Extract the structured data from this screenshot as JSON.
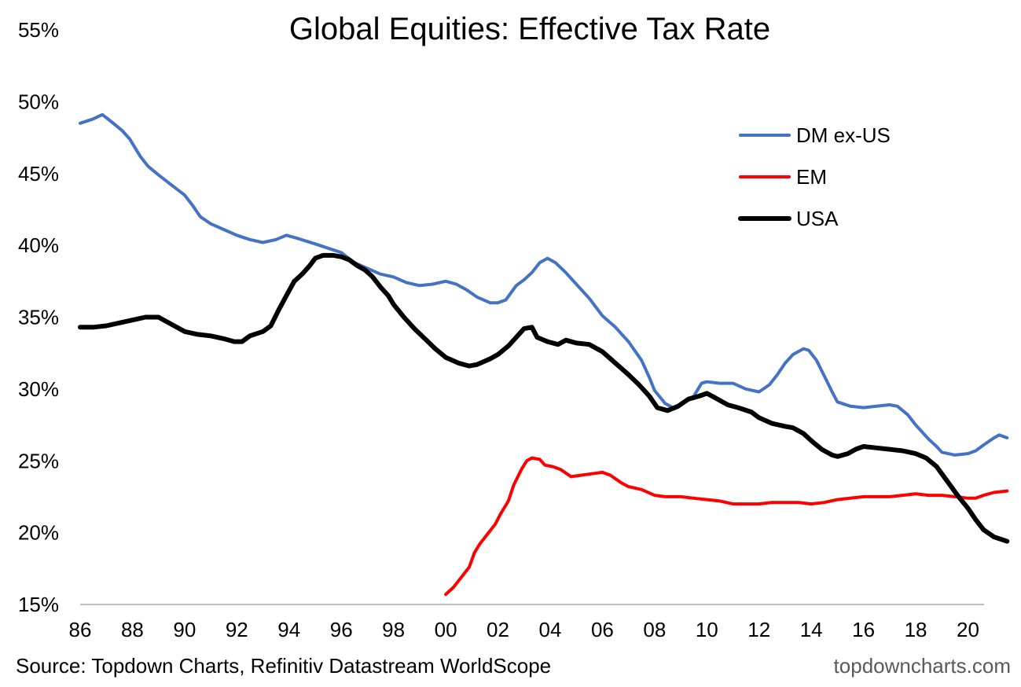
{
  "chart_data": {
    "type": "line",
    "title": "Global Equities: Effective Tax Rate",
    "xlabel": "",
    "ylabel": "",
    "x_ticks": [
      "86",
      "88",
      "90",
      "92",
      "94",
      "96",
      "98",
      "00",
      "02",
      "04",
      "06",
      "08",
      "10",
      "12",
      "14",
      "16",
      "18",
      "20"
    ],
    "y_ticks": [
      "15%",
      "20%",
      "25%",
      "30%",
      "35%",
      "40%",
      "45%",
      "50%",
      "55%"
    ],
    "xlim": [
      1986,
      2021.5
    ],
    "ylim": [
      15,
      55
    ],
    "grid": false,
    "legend_position": "top-right",
    "series": [
      {
        "name": "DM ex-US",
        "color": "#4472C4",
        "width": 4,
        "points": [
          [
            1986.0,
            48.5
          ],
          [
            1986.5,
            48.8
          ],
          [
            1986.85,
            49.1
          ],
          [
            1987.2,
            48.6
          ],
          [
            1987.6,
            48.0
          ],
          [
            1987.9,
            47.4
          ],
          [
            1988.3,
            46.2
          ],
          [
            1988.6,
            45.5
          ],
          [
            1989.0,
            44.9
          ],
          [
            1989.5,
            44.2
          ],
          [
            1990.0,
            43.5
          ],
          [
            1990.3,
            42.8
          ],
          [
            1990.6,
            42.0
          ],
          [
            1991.0,
            41.5
          ],
          [
            1991.5,
            41.1
          ],
          [
            1992.0,
            40.7
          ],
          [
            1992.5,
            40.4
          ],
          [
            1993.0,
            40.2
          ],
          [
            1993.5,
            40.4
          ],
          [
            1993.9,
            40.7
          ],
          [
            1994.3,
            40.5
          ],
          [
            1995.0,
            40.1
          ],
          [
            1995.5,
            39.8
          ],
          [
            1996.0,
            39.5
          ],
          [
            1996.5,
            38.8
          ],
          [
            1997.0,
            38.4
          ],
          [
            1997.5,
            38.0
          ],
          [
            1998.0,
            37.8
          ],
          [
            1998.5,
            37.4
          ],
          [
            1999.0,
            37.2
          ],
          [
            1999.5,
            37.3
          ],
          [
            2000.0,
            37.5
          ],
          [
            2000.4,
            37.3
          ],
          [
            2000.8,
            36.9
          ],
          [
            2001.2,
            36.4
          ],
          [
            2001.7,
            36.0
          ],
          [
            2002.0,
            36.0
          ],
          [
            2002.3,
            36.2
          ],
          [
            2002.7,
            37.2
          ],
          [
            2003.0,
            37.6
          ],
          [
            2003.3,
            38.1
          ],
          [
            2003.6,
            38.8
          ],
          [
            2003.9,
            39.1
          ],
          [
            2004.2,
            38.8
          ],
          [
            2004.6,
            38.1
          ],
          [
            2005.0,
            37.3
          ],
          [
            2005.5,
            36.3
          ],
          [
            2006.0,
            35.1
          ],
          [
            2006.5,
            34.3
          ],
          [
            2007.0,
            33.3
          ],
          [
            2007.5,
            32.0
          ],
          [
            2007.8,
            30.8
          ],
          [
            2008.0,
            29.9
          ],
          [
            2008.4,
            29.0
          ],
          [
            2008.7,
            28.7
          ],
          [
            2009.0,
            28.9
          ],
          [
            2009.5,
            29.5
          ],
          [
            2009.8,
            30.4
          ],
          [
            2010.0,
            30.5
          ],
          [
            2010.5,
            30.4
          ],
          [
            2011.0,
            30.4
          ],
          [
            2011.5,
            30.0
          ],
          [
            2012.0,
            29.8
          ],
          [
            2012.4,
            30.3
          ],
          [
            2012.7,
            31.0
          ],
          [
            2013.0,
            31.8
          ],
          [
            2013.3,
            32.4
          ],
          [
            2013.7,
            32.8
          ],
          [
            2013.9,
            32.7
          ],
          [
            2014.2,
            32.0
          ],
          [
            2014.5,
            30.9
          ],
          [
            2014.8,
            29.8
          ],
          [
            2015.0,
            29.1
          ],
          [
            2015.5,
            28.8
          ],
          [
            2016.0,
            28.7
          ],
          [
            2016.5,
            28.8
          ],
          [
            2017.0,
            28.9
          ],
          [
            2017.3,
            28.8
          ],
          [
            2017.7,
            28.2
          ],
          [
            2018.0,
            27.5
          ],
          [
            2018.5,
            26.5
          ],
          [
            2018.8,
            26.0
          ],
          [
            2019.0,
            25.6
          ],
          [
            2019.5,
            25.4
          ],
          [
            2020.0,
            25.5
          ],
          [
            2020.3,
            25.7
          ],
          [
            2020.6,
            26.1
          ],
          [
            2021.0,
            26.6
          ],
          [
            2021.2,
            26.8
          ],
          [
            2021.5,
            26.6
          ]
        ]
      },
      {
        "name": "EM",
        "color": "#FF0000",
        "width": 4,
        "points": [
          [
            2000.0,
            15.7
          ],
          [
            2000.3,
            16.2
          ],
          [
            2000.6,
            16.9
          ],
          [
            2000.9,
            17.6
          ],
          [
            2001.1,
            18.6
          ],
          [
            2001.3,
            19.2
          ],
          [
            2001.6,
            19.9
          ],
          [
            2001.9,
            20.6
          ],
          [
            2002.1,
            21.3
          ],
          [
            2002.4,
            22.2
          ],
          [
            2002.6,
            23.3
          ],
          [
            2002.9,
            24.4
          ],
          [
            2003.1,
            25.0
          ],
          [
            2003.3,
            25.2
          ],
          [
            2003.6,
            25.1
          ],
          [
            2003.8,
            24.7
          ],
          [
            2004.1,
            24.6
          ],
          [
            2004.4,
            24.4
          ],
          [
            2004.8,
            23.9
          ],
          [
            2005.2,
            24.0
          ],
          [
            2005.6,
            24.1
          ],
          [
            2006.0,
            24.2
          ],
          [
            2006.3,
            24.0
          ],
          [
            2006.7,
            23.5
          ],
          [
            2007.0,
            23.2
          ],
          [
            2007.5,
            23.0
          ],
          [
            2008.0,
            22.6
          ],
          [
            2008.4,
            22.5
          ],
          [
            2009.0,
            22.5
          ],
          [
            2009.5,
            22.4
          ],
          [
            2010.0,
            22.3
          ],
          [
            2010.5,
            22.2
          ],
          [
            2011.0,
            22.0
          ],
          [
            2011.5,
            22.0
          ],
          [
            2012.0,
            22.0
          ],
          [
            2012.5,
            22.1
          ],
          [
            2013.0,
            22.1
          ],
          [
            2013.5,
            22.1
          ],
          [
            2014.0,
            22.0
          ],
          [
            2014.5,
            22.1
          ],
          [
            2015.0,
            22.3
          ],
          [
            2015.5,
            22.4
          ],
          [
            2016.0,
            22.5
          ],
          [
            2016.5,
            22.5
          ],
          [
            2017.0,
            22.5
          ],
          [
            2017.5,
            22.6
          ],
          [
            2018.0,
            22.7
          ],
          [
            2018.5,
            22.6
          ],
          [
            2019.0,
            22.6
          ],
          [
            2019.5,
            22.5
          ],
          [
            2020.0,
            22.4
          ],
          [
            2020.3,
            22.4
          ],
          [
            2020.6,
            22.6
          ],
          [
            2021.0,
            22.8
          ],
          [
            2021.5,
            22.9
          ]
        ]
      },
      {
        "name": "USA",
        "color": "#000000",
        "width": 6,
        "points": [
          [
            1986.0,
            34.3
          ],
          [
            1986.5,
            34.3
          ],
          [
            1987.0,
            34.4
          ],
          [
            1987.5,
            34.6
          ],
          [
            1988.0,
            34.8
          ],
          [
            1988.5,
            35.0
          ],
          [
            1989.0,
            35.0
          ],
          [
            1989.3,
            34.7
          ],
          [
            1989.7,
            34.3
          ],
          [
            1990.0,
            34.0
          ],
          [
            1990.5,
            33.8
          ],
          [
            1991.0,
            33.7
          ],
          [
            1991.5,
            33.5
          ],
          [
            1991.9,
            33.3
          ],
          [
            1992.2,
            33.3
          ],
          [
            1992.5,
            33.7
          ],
          [
            1993.0,
            34.0
          ],
          [
            1993.3,
            34.4
          ],
          [
            1993.6,
            35.5
          ],
          [
            1993.9,
            36.5
          ],
          [
            1994.2,
            37.5
          ],
          [
            1994.5,
            38.0
          ],
          [
            1994.8,
            38.6
          ],
          [
            1995.0,
            39.1
          ],
          [
            1995.3,
            39.3
          ],
          [
            1995.7,
            39.3
          ],
          [
            1996.0,
            39.2
          ],
          [
            1996.3,
            39.0
          ],
          [
            1996.6,
            38.6
          ],
          [
            1996.9,
            38.3
          ],
          [
            1997.2,
            37.8
          ],
          [
            1997.5,
            37.1
          ],
          [
            1997.8,
            36.5
          ],
          [
            1998.0,
            35.9
          ],
          [
            1998.4,
            35.0
          ],
          [
            1998.8,
            34.2
          ],
          [
            1999.2,
            33.5
          ],
          [
            1999.6,
            32.8
          ],
          [
            2000.0,
            32.2
          ],
          [
            2000.5,
            31.8
          ],
          [
            2000.9,
            31.6
          ],
          [
            2001.2,
            31.7
          ],
          [
            2001.7,
            32.1
          ],
          [
            2002.0,
            32.4
          ],
          [
            2002.4,
            33.0
          ],
          [
            2002.7,
            33.6
          ],
          [
            2003.0,
            34.2
          ],
          [
            2003.3,
            34.3
          ],
          [
            2003.5,
            33.6
          ],
          [
            2003.9,
            33.3
          ],
          [
            2004.3,
            33.1
          ],
          [
            2004.6,
            33.4
          ],
          [
            2005.0,
            33.2
          ],
          [
            2005.5,
            33.1
          ],
          [
            2006.0,
            32.6
          ],
          [
            2006.5,
            31.8
          ],
          [
            2007.0,
            31.0
          ],
          [
            2007.4,
            30.3
          ],
          [
            2007.8,
            29.5
          ],
          [
            2008.1,
            28.7
          ],
          [
            2008.5,
            28.5
          ],
          [
            2008.9,
            28.8
          ],
          [
            2009.3,
            29.3
          ],
          [
            2009.7,
            29.5
          ],
          [
            2010.0,
            29.7
          ],
          [
            2010.3,
            29.4
          ],
          [
            2010.8,
            28.9
          ],
          [
            2011.2,
            28.7
          ],
          [
            2011.7,
            28.4
          ],
          [
            2012.0,
            28.0
          ],
          [
            2012.5,
            27.6
          ],
          [
            2013.0,
            27.4
          ],
          [
            2013.3,
            27.3
          ],
          [
            2013.7,
            26.9
          ],
          [
            2014.0,
            26.4
          ],
          [
            2014.4,
            25.8
          ],
          [
            2014.8,
            25.4
          ],
          [
            2015.0,
            25.3
          ],
          [
            2015.4,
            25.5
          ],
          [
            2015.7,
            25.8
          ],
          [
            2016.0,
            26.0
          ],
          [
            2016.5,
            25.9
          ],
          [
            2017.0,
            25.8
          ],
          [
            2017.5,
            25.7
          ],
          [
            2018.0,
            25.5
          ],
          [
            2018.4,
            25.2
          ],
          [
            2018.8,
            24.6
          ],
          [
            2019.2,
            23.6
          ],
          [
            2019.6,
            22.6
          ],
          [
            2020.0,
            21.7
          ],
          [
            2020.3,
            20.9
          ],
          [
            2020.6,
            20.2
          ],
          [
            2021.0,
            19.7
          ],
          [
            2021.5,
            19.4
          ]
        ]
      }
    ],
    "source": "Source: Topdown Charts, Refinitiv Datastream WorldScope",
    "watermark": "topdowncharts.com"
  }
}
